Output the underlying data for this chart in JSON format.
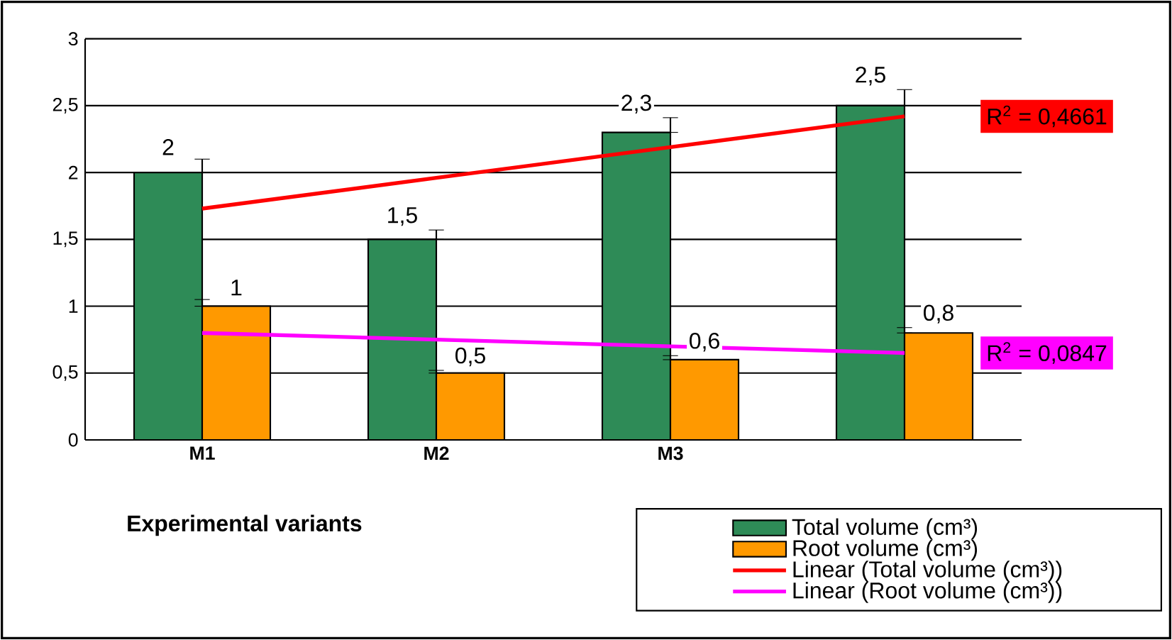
{
  "chart_data": {
    "type": "bar",
    "xlabel": "Experimental variants",
    "categories": [
      "M1",
      "M2",
      "M3",
      null
    ],
    "series": [
      {
        "name": "Total volume (cm³)",
        "color": "#2e8b57",
        "values": [
          2,
          1.5,
          2.3,
          2.5
        ],
        "errors": [
          [
            2,
            2.1
          ],
          [
            1.5,
            1.57
          ],
          [
            2.3,
            2.41
          ],
          [
            2.5,
            2.62
          ]
        ],
        "value_labels": [
          "2",
          "1,5",
          "2,3",
          "2,5"
        ]
      },
      {
        "name": "Root volume (cm³)",
        "color": "#ff9900",
        "values": [
          1,
          0.5,
          0.6,
          0.8
        ],
        "errors": [
          [
            1,
            1.05
          ],
          [
            0.5,
            0.52
          ],
          [
            0.6,
            0.63
          ],
          [
            0.8,
            0.84
          ]
        ],
        "value_labels": [
          "1",
          "0,5",
          "0,6",
          "0,8"
        ]
      },
      {
        "name": "Linear (Total volume (cm³))",
        "type": "line",
        "color": "#ff0000",
        "values": [
          1.73,
          1.96,
          2.19,
          2.42
        ]
      },
      {
        "name": "Linear (Root volume (cm³))",
        "type": "line",
        "color": "#ff00ff",
        "values": [
          0.8,
          0.75,
          0.7,
          0.65
        ]
      }
    ],
    "annotations": [
      "R$^{2}$ = 0,4661",
      "R$^{2}$ = 0,0847"
    ],
    "ylim": [
      0,
      3
    ],
    "yticks": [
      0,
      {
        "value": 0.5,
        "label": "0,5"
      },
      1,
      {
        "value": 1.5,
        "label": "1,5"
      },
      2,
      {
        "value": 2.5,
        "label": "2,5"
      },
      3
    ],
    "grid": "y",
    "legend": "bottom right"
  }
}
